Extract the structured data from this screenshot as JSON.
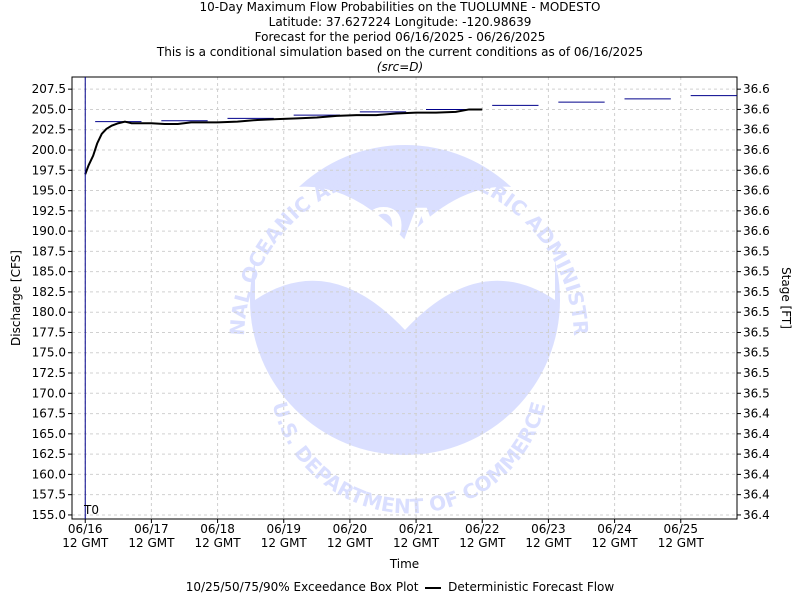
{
  "header": {
    "line1": "10-Day Maximum Flow Probabilities on the TUOLUMNE - MODESTO",
    "line2": "Latitude: 37.627224 Longitude: -120.98639",
    "line3": "Forecast for the period 06/16/2025 - 06/26/2025",
    "line4": "This is a conditional simulation based on the current conditions as of 06/16/2025",
    "line5": "(src=D)"
  },
  "legend": {
    "box_plot_label": "10/25/50/75/90% Exceedance Box Plot",
    "deterministic_label": "Deterministic Forecast Flow"
  },
  "chart_data": {
    "type": "line",
    "title": "10-Day Maximum Flow Probabilities on the TUOLUMNE - MODESTO",
    "xlabel": "Time",
    "ylabel": "Discharge [CFS]",
    "y2label": "Stage [FT]",
    "ylim": [
      154.5,
      209.0
    ],
    "xlim": [
      -0.2,
      9.85
    ],
    "grid": true,
    "t0_label": "T0",
    "watermark": {
      "center": "NOAA",
      "top_arc": "NATIONAL OCEANIC AND ATMOSPHERIC ADMINISTRATION",
      "bottom_arc": "U.S. DEPARTMENT OF COMMERCE"
    },
    "x_ticks": [
      {
        "value": 0,
        "label1": "06/16",
        "label2": "12 GMT"
      },
      {
        "value": 1,
        "label1": "06/17",
        "label2": "12 GMT"
      },
      {
        "value": 2,
        "label1": "06/18",
        "label2": "12 GMT"
      },
      {
        "value": 3,
        "label1": "06/19",
        "label2": "12 GMT"
      },
      {
        "value": 4,
        "label1": "06/20",
        "label2": "12 GMT"
      },
      {
        "value": 5,
        "label1": "06/21",
        "label2": "12 GMT"
      },
      {
        "value": 6,
        "label1": "06/22",
        "label2": "12 GMT"
      },
      {
        "value": 7,
        "label1": "06/23",
        "label2": "12 GMT"
      },
      {
        "value": 8,
        "label1": "06/24",
        "label2": "12 GMT"
      },
      {
        "value": 9,
        "label1": "06/25",
        "label2": "12 GMT"
      }
    ],
    "y_ticks": [
      155.0,
      157.5,
      160.0,
      162.5,
      165.0,
      167.5,
      170.0,
      172.5,
      175.0,
      177.5,
      180.0,
      182.5,
      185.0,
      187.5,
      190.0,
      192.5,
      195.0,
      197.5,
      200.0,
      202.5,
      205.0,
      207.5
    ],
    "y_tick_labels": [
      "155.0",
      "157.5",
      "160.0",
      "162.5",
      "165.0",
      "167.5",
      "170.0",
      "172.5",
      "175.0",
      "177.5",
      "180.0",
      "182.5",
      "185.0",
      "187.5",
      "190.0",
      "192.5",
      "195.0",
      "197.5",
      "200.0",
      "202.5",
      "205.0",
      "207.5"
    ],
    "stage_tick_labels": [
      "36.4",
      "36.4",
      "36.4",
      "36.4",
      "36.4",
      "36.4",
      "36.5",
      "36.5",
      "36.5",
      "36.5",
      "36.5",
      "36.5",
      "36.5",
      "36.5",
      "36.6",
      "36.6",
      "36.6",
      "36.6",
      "36.6",
      "36.6",
      "36.6",
      "36.6"
    ],
    "series": [
      {
        "name": "Deterministic Forecast Flow",
        "color": "#000000",
        "x": [
          0.0,
          0.05,
          0.12,
          0.18,
          0.25,
          0.32,
          0.4,
          0.5,
          0.6,
          0.7,
          0.8,
          1.0,
          1.2,
          1.4,
          1.6,
          1.8,
          2.0,
          2.3,
          2.6,
          2.9,
          3.2,
          3.5,
          3.8,
          4.1,
          4.4,
          4.7,
          5.0,
          5.3,
          5.6,
          5.8,
          6.0
        ],
        "y": [
          197.0,
          198.1,
          199.3,
          200.8,
          202.0,
          202.6,
          203.0,
          203.3,
          203.5,
          203.3,
          203.3,
          203.3,
          203.2,
          203.2,
          203.4,
          203.4,
          203.4,
          203.5,
          203.7,
          203.8,
          203.9,
          204.0,
          204.2,
          204.3,
          204.3,
          204.5,
          204.6,
          204.6,
          204.7,
          205.0,
          205.0
        ]
      }
    ],
    "box_plot_medians": [
      {
        "x0": 0.15,
        "x1": 0.85,
        "y": 203.5
      },
      {
        "x0": 1.15,
        "x1": 1.85,
        "y": 203.6
      },
      {
        "x0": 2.15,
        "x1": 2.85,
        "y": 203.9
      },
      {
        "x0": 3.15,
        "x1": 3.85,
        "y": 204.3
      },
      {
        "x0": 4.15,
        "x1": 4.85,
        "y": 204.7
      },
      {
        "x0": 5.15,
        "x1": 5.85,
        "y": 205.0
      },
      {
        "x0": 6.15,
        "x1": 6.85,
        "y": 205.5
      },
      {
        "x0": 7.15,
        "x1": 7.85,
        "y": 205.9
      },
      {
        "x0": 8.15,
        "x1": 8.85,
        "y": 206.3
      },
      {
        "x0": 9.15,
        "x1": 9.85,
        "y": 206.7
      }
    ],
    "box_color": "#00008b"
  }
}
